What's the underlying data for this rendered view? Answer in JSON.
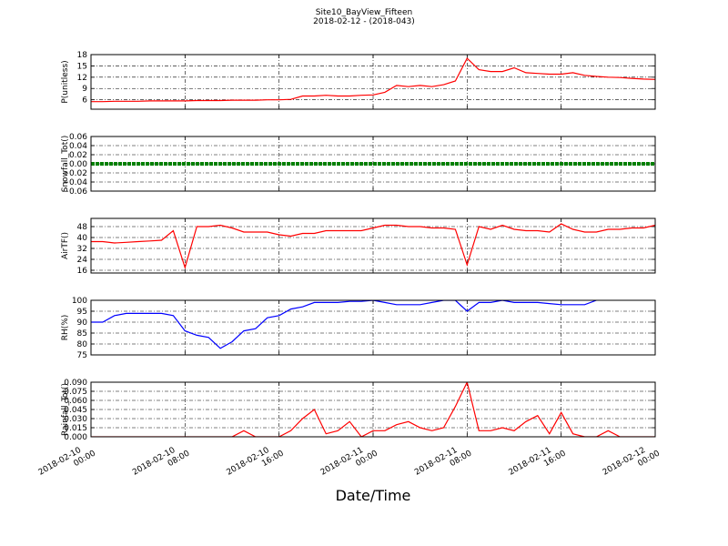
{
  "title": "Site10_BayView_Fifteen",
  "subtitle": "2018-02-12 - (2018-043)",
  "xlabel": "Date/Time",
  "chart_data": [
    {
      "type": "line",
      "ylabel": "P(unitless)",
      "color": "#ff0000",
      "xlim": [
        "2018-02-10 00:00",
        "2018-02-12 00:00"
      ],
      "ylim": [
        3.5,
        18
      ],
      "yticks": [
        6,
        9,
        12,
        15,
        18
      ],
      "grid": true,
      "xticks": [
        "2018-02-10 00:00",
        "2018-02-10 08:00",
        "2018-02-10 16:00",
        "2018-02-11 00:00",
        "2018-02-11 08:00",
        "2018-02-11 16:00",
        "2018-02-12 00:00"
      ],
      "x": [
        "2018-02-10 00:00",
        "2018-02-10 01:00",
        "2018-02-10 02:00",
        "2018-02-10 03:00",
        "2018-02-10 04:00",
        "2018-02-10 05:00",
        "2018-02-10 06:00",
        "2018-02-10 07:00",
        "2018-02-10 08:00",
        "2018-02-10 09:00",
        "2018-02-10 10:00",
        "2018-02-10 11:00",
        "2018-02-10 12:00",
        "2018-02-10 13:00",
        "2018-02-10 14:00",
        "2018-02-10 15:00",
        "2018-02-10 16:00",
        "2018-02-10 17:00",
        "2018-02-10 18:00",
        "2018-02-10 19:00",
        "2018-02-10 20:00",
        "2018-02-10 21:00",
        "2018-02-10 22:00",
        "2018-02-10 23:00",
        "2018-02-11 00:00",
        "2018-02-11 01:00",
        "2018-02-11 02:00",
        "2018-02-11 03:00",
        "2018-02-11 04:00",
        "2018-02-11 05:00",
        "2018-02-11 06:00",
        "2018-02-11 07:00",
        "2018-02-11 08:00",
        "2018-02-11 09:00",
        "2018-02-11 10:00",
        "2018-02-11 11:00",
        "2018-02-11 12:00",
        "2018-02-11 13:00",
        "2018-02-11 14:00",
        "2018-02-11 15:00",
        "2018-02-11 16:00",
        "2018-02-11 17:00",
        "2018-02-11 18:00",
        "2018-02-11 19:00",
        "2018-02-11 20:00",
        "2018-02-11 21:00",
        "2018-02-11 22:00",
        "2018-02-11 23:00",
        "2018-02-12 00:00"
      ],
      "values": [
        5.5,
        5.5,
        5.6,
        5.6,
        5.6,
        5.7,
        5.7,
        5.7,
        5.7,
        5.8,
        5.8,
        5.8,
        5.9,
        5.9,
        5.9,
        6.0,
        6.0,
        6.1,
        7.0,
        7.0,
        7.2,
        7.0,
        7.0,
        7.2,
        7.3,
        8.0,
        9.8,
        9.5,
        9.8,
        9.5,
        10.0,
        11.0,
        17.0,
        14.0,
        13.5,
        13.5,
        14.5,
        13.2,
        13.0,
        12.8,
        12.8,
        13.2,
        12.5,
        12.2,
        12.0,
        11.9,
        11.7,
        11.5,
        11.4
      ]
    },
    {
      "type": "line",
      "ylabel": "Snowfall_Tot()",
      "color": "#008000",
      "xlim": [
        "2018-02-10 00:00",
        "2018-02-12 00:00"
      ],
      "ylim": [
        -0.06,
        0.06
      ],
      "grid": true,
      "yticks": [
        {
          "value": -0.06,
          "label": "−0.06"
        },
        {
          "value": -0.04,
          "label": "−0.04"
        },
        {
          "value": -0.02,
          "label": "−0.02"
        },
        {
          "value": 0,
          "label": "0.00"
        },
        {
          "value": 0.02,
          "label": "0.02"
        },
        {
          "value": 0.04,
          "label": "0.04"
        },
        {
          "value": 0.06,
          "label": "0.06"
        }
      ],
      "xticks": [
        "2018-02-10 00:00",
        "2018-02-10 08:00",
        "2018-02-10 16:00",
        "2018-02-11 00:00",
        "2018-02-11 08:00",
        "2018-02-11 16:00",
        "2018-02-12 00:00"
      ],
      "x": [
        "2018-02-10 00:00",
        "2018-02-10 01:00",
        "2018-02-10 02:00",
        "2018-02-10 03:00",
        "2018-02-10 04:00",
        "2018-02-10 05:00",
        "2018-02-10 06:00",
        "2018-02-10 07:00",
        "2018-02-10 08:00",
        "2018-02-10 09:00",
        "2018-02-10 10:00",
        "2018-02-10 11:00",
        "2018-02-10 12:00",
        "2018-02-10 13:00",
        "2018-02-10 14:00",
        "2018-02-10 15:00",
        "2018-02-10 16:00",
        "2018-02-10 17:00",
        "2018-02-10 18:00",
        "2018-02-10 19:00",
        "2018-02-10 20:00",
        "2018-02-10 21:00",
        "2018-02-10 22:00",
        "2018-02-10 23:00",
        "2018-02-11 00:00",
        "2018-02-11 01:00",
        "2018-02-11 02:00",
        "2018-02-11 03:00",
        "2018-02-11 04:00",
        "2018-02-11 05:00",
        "2018-02-11 06:00",
        "2018-02-11 07:00",
        "2018-02-11 08:00",
        "2018-02-11 09:00",
        "2018-02-11 10:00",
        "2018-02-11 11:00",
        "2018-02-11 12:00",
        "2018-02-11 13:00",
        "2018-02-11 14:00",
        "2018-02-11 15:00",
        "2018-02-11 16:00",
        "2018-02-11 17:00",
        "2018-02-11 18:00",
        "2018-02-11 19:00",
        "2018-02-11 20:00",
        "2018-02-11 21:00",
        "2018-02-11 22:00",
        "2018-02-11 23:00",
        "2018-02-12 00:00"
      ],
      "values": [
        0,
        0,
        0,
        0,
        0,
        0,
        0,
        0,
        0,
        0,
        0,
        0,
        0,
        0,
        0,
        0,
        0,
        0,
        0,
        0,
        0,
        0,
        0,
        0,
        0,
        0,
        0,
        0,
        0,
        0,
        0,
        0,
        0,
        0,
        0,
        0,
        0,
        0,
        0,
        0,
        0,
        0,
        0,
        0,
        0,
        0,
        0,
        0,
        0
      ]
    },
    {
      "type": "line",
      "ylabel": "AirTF()",
      "color": "#ff0000",
      "xlim": [
        "2018-02-10 00:00",
        "2018-02-12 00:00"
      ],
      "ylim": [
        14,
        54
      ],
      "yticks": [
        16,
        24,
        32,
        40,
        48
      ],
      "grid": true,
      "xticks": [
        "2018-02-10 00:00",
        "2018-02-10 08:00",
        "2018-02-10 16:00",
        "2018-02-11 00:00",
        "2018-02-11 08:00",
        "2018-02-11 16:00",
        "2018-02-12 00:00"
      ],
      "x": [
        "2018-02-10 00:00",
        "2018-02-10 01:00",
        "2018-02-10 02:00",
        "2018-02-10 03:00",
        "2018-02-10 04:00",
        "2018-02-10 05:00",
        "2018-02-10 06:00",
        "2018-02-10 07:00",
        "2018-02-10 08:00",
        "2018-02-10 09:00",
        "2018-02-10 10:00",
        "2018-02-10 11:00",
        "2018-02-10 12:00",
        "2018-02-10 13:00",
        "2018-02-10 14:00",
        "2018-02-10 15:00",
        "2018-02-10 16:00",
        "2018-02-10 17:00",
        "2018-02-10 18:00",
        "2018-02-10 19:00",
        "2018-02-10 20:00",
        "2018-02-10 21:00",
        "2018-02-10 22:00",
        "2018-02-10 23:00",
        "2018-02-11 00:00",
        "2018-02-11 01:00",
        "2018-02-11 02:00",
        "2018-02-11 03:00",
        "2018-02-11 04:00",
        "2018-02-11 05:00",
        "2018-02-11 06:00",
        "2018-02-11 07:00",
        "2018-02-11 08:00",
        "2018-02-11 09:00",
        "2018-02-11 10:00",
        "2018-02-11 11:00",
        "2018-02-11 12:00",
        "2018-02-11 13:00",
        "2018-02-11 14:00",
        "2018-02-11 15:00",
        "2018-02-11 16:00",
        "2018-02-11 17:00",
        "2018-02-11 18:00",
        "2018-02-11 19:00",
        "2018-02-11 20:00",
        "2018-02-11 21:00",
        "2018-02-11 22:00",
        "2018-02-11 23:00",
        "2018-02-12 00:00"
      ],
      "values": [
        37,
        37,
        36,
        36.5,
        37,
        37.5,
        38,
        45,
        18,
        48,
        48,
        49,
        47,
        44,
        44,
        44,
        42,
        41,
        43,
        43,
        45,
        45,
        45,
        45,
        47,
        49,
        49,
        48,
        48,
        47,
        47,
        46,
        20,
        48,
        46,
        49,
        46,
        45,
        45,
        44,
        50,
        46,
        44,
        44,
        46,
        46,
        47,
        47,
        49
      ]
    },
    {
      "type": "line",
      "ylabel": "RH(%)",
      "color": "#0000ff",
      "xlim": [
        "2018-02-10 00:00",
        "2018-02-12 00:00"
      ],
      "ylim": [
        75,
        100
      ],
      "yticks": [
        75,
        80,
        85,
        90,
        95,
        100
      ],
      "grid": true,
      "xticks": [
        "2018-02-10 00:00",
        "2018-02-10 08:00",
        "2018-02-10 16:00",
        "2018-02-11 00:00",
        "2018-02-11 08:00",
        "2018-02-11 16:00",
        "2018-02-12 00:00"
      ],
      "x": [
        "2018-02-10 00:00",
        "2018-02-10 01:00",
        "2018-02-10 02:00",
        "2018-02-10 03:00",
        "2018-02-10 04:00",
        "2018-02-10 05:00",
        "2018-02-10 06:00",
        "2018-02-10 07:00",
        "2018-02-10 08:00",
        "2018-02-10 09:00",
        "2018-02-10 10:00",
        "2018-02-10 11:00",
        "2018-02-10 12:00",
        "2018-02-10 13:00",
        "2018-02-10 14:00",
        "2018-02-10 15:00",
        "2018-02-10 16:00",
        "2018-02-10 17:00",
        "2018-02-10 18:00",
        "2018-02-10 19:00",
        "2018-02-10 20:00",
        "2018-02-10 21:00",
        "2018-02-10 22:00",
        "2018-02-10 23:00",
        "2018-02-11 00:00",
        "2018-02-11 01:00",
        "2018-02-11 02:00",
        "2018-02-11 03:00",
        "2018-02-11 04:00",
        "2018-02-11 05:00",
        "2018-02-11 06:00",
        "2018-02-11 07:00",
        "2018-02-11 08:00",
        "2018-02-11 09:00",
        "2018-02-11 10:00",
        "2018-02-11 11:00",
        "2018-02-11 12:00",
        "2018-02-11 13:00",
        "2018-02-11 14:00",
        "2018-02-11 15:00",
        "2018-02-11 16:00",
        "2018-02-11 17:00",
        "2018-02-11 18:00",
        "2018-02-11 19:00",
        "2018-02-11 20:00",
        "2018-02-11 21:00",
        "2018-02-11 22:00",
        "2018-02-11 23:00",
        "2018-02-12 00:00"
      ],
      "values": [
        90,
        90,
        93,
        94,
        94,
        94,
        94,
        93,
        86,
        84,
        83,
        78,
        81,
        86,
        87,
        92,
        93,
        96,
        97,
        99,
        99,
        99,
        99.5,
        99.5,
        100,
        99,
        98,
        98,
        98,
        99,
        100,
        100,
        95,
        99,
        99,
        100,
        99,
        99,
        99,
        98.5,
        98,
        98,
        98,
        100,
        null,
        null,
        null,
        null,
        null
      ]
    },
    {
      "type": "line",
      "ylabel": "Rainfall_Tot()",
      "color": "#ff0000",
      "xlim": [
        "2018-02-10 00:00",
        "2018-02-12 00:00"
      ],
      "ylim": [
        0,
        0.09
      ],
      "grid": true,
      "yticks": [
        {
          "value": 0,
          "label": "0.000"
        },
        {
          "value": 0.015,
          "label": "0.015"
        },
        {
          "value": 0.03,
          "label": "0.030"
        },
        {
          "value": 0.045,
          "label": "0.045"
        },
        {
          "value": 0.06,
          "label": "0.060"
        },
        {
          "value": 0.075,
          "label": "0.075"
        },
        {
          "value": 0.09,
          "label": "0.090"
        }
      ],
      "xticks": [
        {
          "value": "2018-02-10 00:00",
          "label": "2018-02-10\n00:00"
        },
        {
          "value": "2018-02-10 08:00",
          "label": "2018-02-10\n08:00"
        },
        {
          "value": "2018-02-10 16:00",
          "label": "2018-02-10\n16:00"
        },
        {
          "value": "2018-02-11 00:00",
          "label": "2018-02-11\n00:00"
        },
        {
          "value": "2018-02-11 08:00",
          "label": "2018-02-11\n08:00"
        },
        {
          "value": "2018-02-11 16:00",
          "label": "2018-02-11\n16:00"
        },
        {
          "value": "2018-02-12 00:00",
          "label": "2018-02-12\n00:00"
        }
      ],
      "x": [
        "2018-02-10 00:00",
        "2018-02-10 01:00",
        "2018-02-10 02:00",
        "2018-02-10 03:00",
        "2018-02-10 04:00",
        "2018-02-10 05:00",
        "2018-02-10 06:00",
        "2018-02-10 07:00",
        "2018-02-10 08:00",
        "2018-02-10 09:00",
        "2018-02-10 10:00",
        "2018-02-10 11:00",
        "2018-02-10 12:00",
        "2018-02-10 13:00",
        "2018-02-10 14:00",
        "2018-02-10 15:00",
        "2018-02-10 16:00",
        "2018-02-10 17:00",
        "2018-02-10 18:00",
        "2018-02-10 19:00",
        "2018-02-10 20:00",
        "2018-02-10 21:00",
        "2018-02-10 22:00",
        "2018-02-10 23:00",
        "2018-02-11 00:00",
        "2018-02-11 01:00",
        "2018-02-11 02:00",
        "2018-02-11 03:00",
        "2018-02-11 04:00",
        "2018-02-11 05:00",
        "2018-02-11 06:00",
        "2018-02-11 07:00",
        "2018-02-11 08:00",
        "2018-02-11 09:00",
        "2018-02-11 10:00",
        "2018-02-11 11:00",
        "2018-02-11 12:00",
        "2018-02-11 13:00",
        "2018-02-11 14:00",
        "2018-02-11 15:00",
        "2018-02-11 16:00",
        "2018-02-11 17:00",
        "2018-02-11 18:00",
        "2018-02-11 19:00",
        "2018-02-11 20:00",
        "2018-02-11 21:00",
        "2018-02-11 22:00",
        "2018-02-11 23:00",
        "2018-02-12 00:00"
      ],
      "values": [
        0,
        0,
        0,
        0,
        0,
        0,
        0,
        0,
        0,
        0,
        0,
        0,
        0,
        0.01,
        0,
        0,
        0,
        0.01,
        0.03,
        0.045,
        0.005,
        0.01,
        0.025,
        0,
        0.01,
        0.01,
        0.02,
        0.025,
        0.015,
        0.01,
        0.015,
        0.05,
        0.09,
        0.01,
        0.01,
        0.015,
        0.01,
        0.025,
        0.035,
        0.005,
        0.04,
        0.005,
        0,
        0,
        0.01,
        0,
        0,
        0,
        0
      ]
    }
  ]
}
